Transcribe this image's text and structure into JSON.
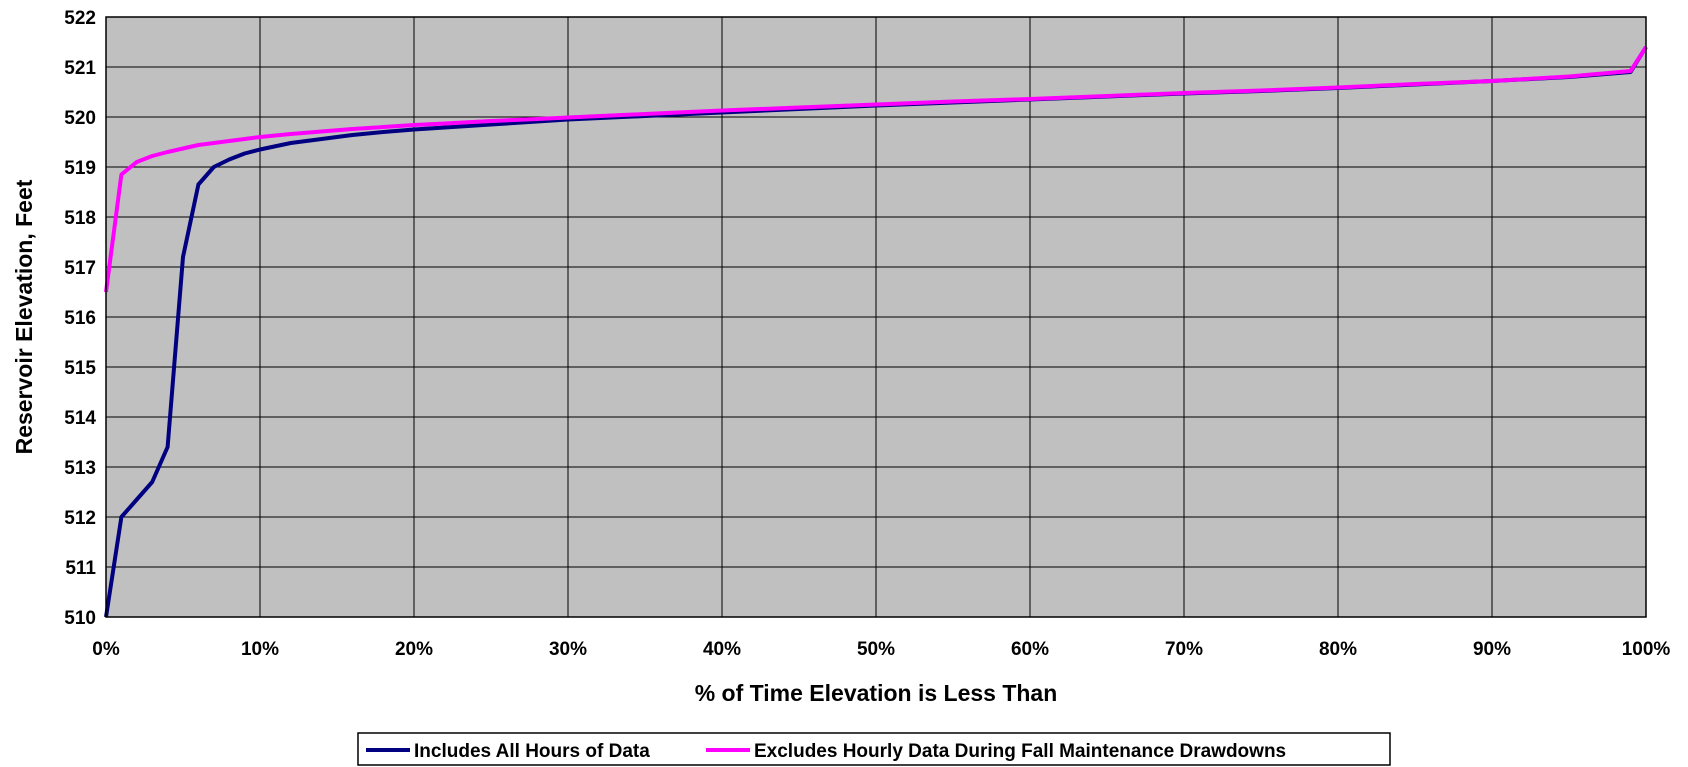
{
  "chart_data": {
    "type": "line",
    "xlabel": "% of Time Elevation is Less Than",
    "ylabel": "Reservoir Elevation, Feet",
    "xlim": [
      0,
      100
    ],
    "ylim": [
      510,
      522
    ],
    "x_ticks": [
      0,
      10,
      20,
      30,
      40,
      50,
      60,
      70,
      80,
      90,
      100
    ],
    "x_tick_labels": [
      "0%",
      "10%",
      "20%",
      "30%",
      "40%",
      "50%",
      "60%",
      "70%",
      "80%",
      "90%",
      "100%"
    ],
    "y_ticks": [
      510,
      511,
      512,
      513,
      514,
      515,
      516,
      517,
      518,
      519,
      520,
      521,
      522
    ],
    "y_tick_labels": [
      "510",
      "511",
      "512",
      "513",
      "514",
      "515",
      "516",
      "517",
      "518",
      "519",
      "520",
      "521",
      "522"
    ],
    "grid": true,
    "plot_background": "#c0c0c0",
    "legend_position": "bottom",
    "series": [
      {
        "name": "Includes All Hours of Data",
        "color": "#000080",
        "x": [
          0,
          1,
          2,
          3,
          4,
          5,
          6,
          7,
          8,
          9,
          10,
          12,
          14,
          16,
          18,
          20,
          22,
          25,
          28,
          30,
          35,
          40,
          45,
          50,
          55,
          60,
          65,
          70,
          75,
          80,
          85,
          90,
          95,
          99,
          100
        ],
        "values": [
          510.0,
          512.0,
          512.35,
          512.7,
          513.4,
          517.2,
          518.65,
          519.0,
          519.15,
          519.27,
          519.35,
          519.48,
          519.56,
          519.64,
          519.7,
          519.75,
          519.79,
          519.85,
          519.91,
          519.95,
          520.02,
          520.09,
          520.16,
          520.23,
          520.29,
          520.35,
          520.41,
          520.47,
          520.52,
          520.58,
          520.65,
          520.72,
          520.8,
          520.9,
          521.4
        ]
      },
      {
        "name": "Excludes Hourly Data During Fall Maintenance Drawdowns",
        "color": "#ff00ff",
        "x": [
          0,
          1,
          2,
          3,
          4,
          5,
          6,
          7,
          8,
          9,
          10,
          12,
          14,
          16,
          18,
          20,
          22,
          25,
          28,
          30,
          35,
          40,
          45,
          50,
          55,
          60,
          65,
          70,
          75,
          80,
          85,
          90,
          95,
          99,
          100
        ],
        "values": [
          516.5,
          518.85,
          519.1,
          519.22,
          519.3,
          519.37,
          519.44,
          519.48,
          519.52,
          519.56,
          519.6,
          519.66,
          519.71,
          519.76,
          519.8,
          519.84,
          519.87,
          519.92,
          519.96,
          519.99,
          520.06,
          520.13,
          520.19,
          520.25,
          520.31,
          520.36,
          520.42,
          520.48,
          520.53,
          520.59,
          520.66,
          520.72,
          520.81,
          520.92,
          521.4
        ]
      }
    ]
  }
}
